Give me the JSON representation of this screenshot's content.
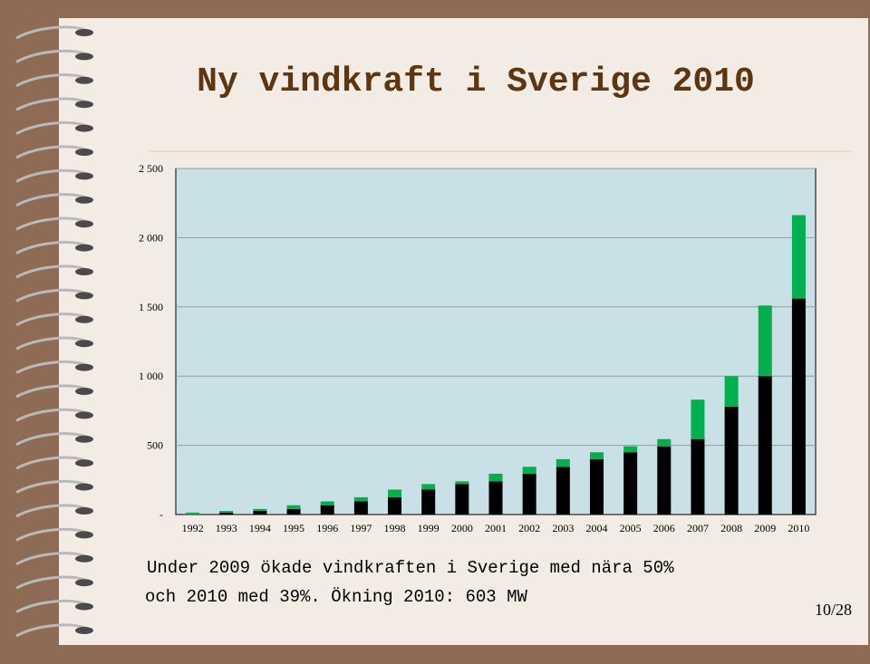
{
  "chart_data": {
    "type": "stacked-bar",
    "title": "Ny vindkraft i Sverige 2010",
    "categories": [
      "1992",
      "1993",
      "1994",
      "1995",
      "1996",
      "1997",
      "1998",
      "1999",
      "2000",
      "2001",
      "2002",
      "2003",
      "2004",
      "2005",
      "2006",
      "2007",
      "2008",
      "2009",
      "2010"
    ],
    "series": [
      {
        "color": "#000000",
        "values": [
          0,
          14,
          26,
          40,
          67,
          95,
          125,
          180,
          220,
          240,
          295,
          345,
          400,
          450,
          493,
          545,
          780,
          1000,
          1560
        ]
      },
      {
        "color": "#00b050",
        "values": [
          14,
          12,
          14,
          27,
          28,
          30,
          55,
          40,
          20,
          55,
          50,
          55,
          50,
          43,
          52,
          285,
          220,
          510,
          603
        ]
      }
    ],
    "ylim": [
      0,
      2500
    ],
    "yticks": [
      {
        "value": 0,
        "label": "-"
      },
      {
        "value": 500,
        "label": "500"
      },
      {
        "value": 1000,
        "label": "1 000"
      },
      {
        "value": 1500,
        "label": "1 500"
      },
      {
        "value": 2000,
        "label": "2 000"
      },
      {
        "value": 2500,
        "label": "2 500"
      }
    ],
    "grid": true
  },
  "caption": [
    "Under 2009 ökade vindkraften i Sverige med nära 50%",
    "och 2010 med 39%. Ökning 2010: 603 MW"
  ],
  "page_number": "10/28"
}
